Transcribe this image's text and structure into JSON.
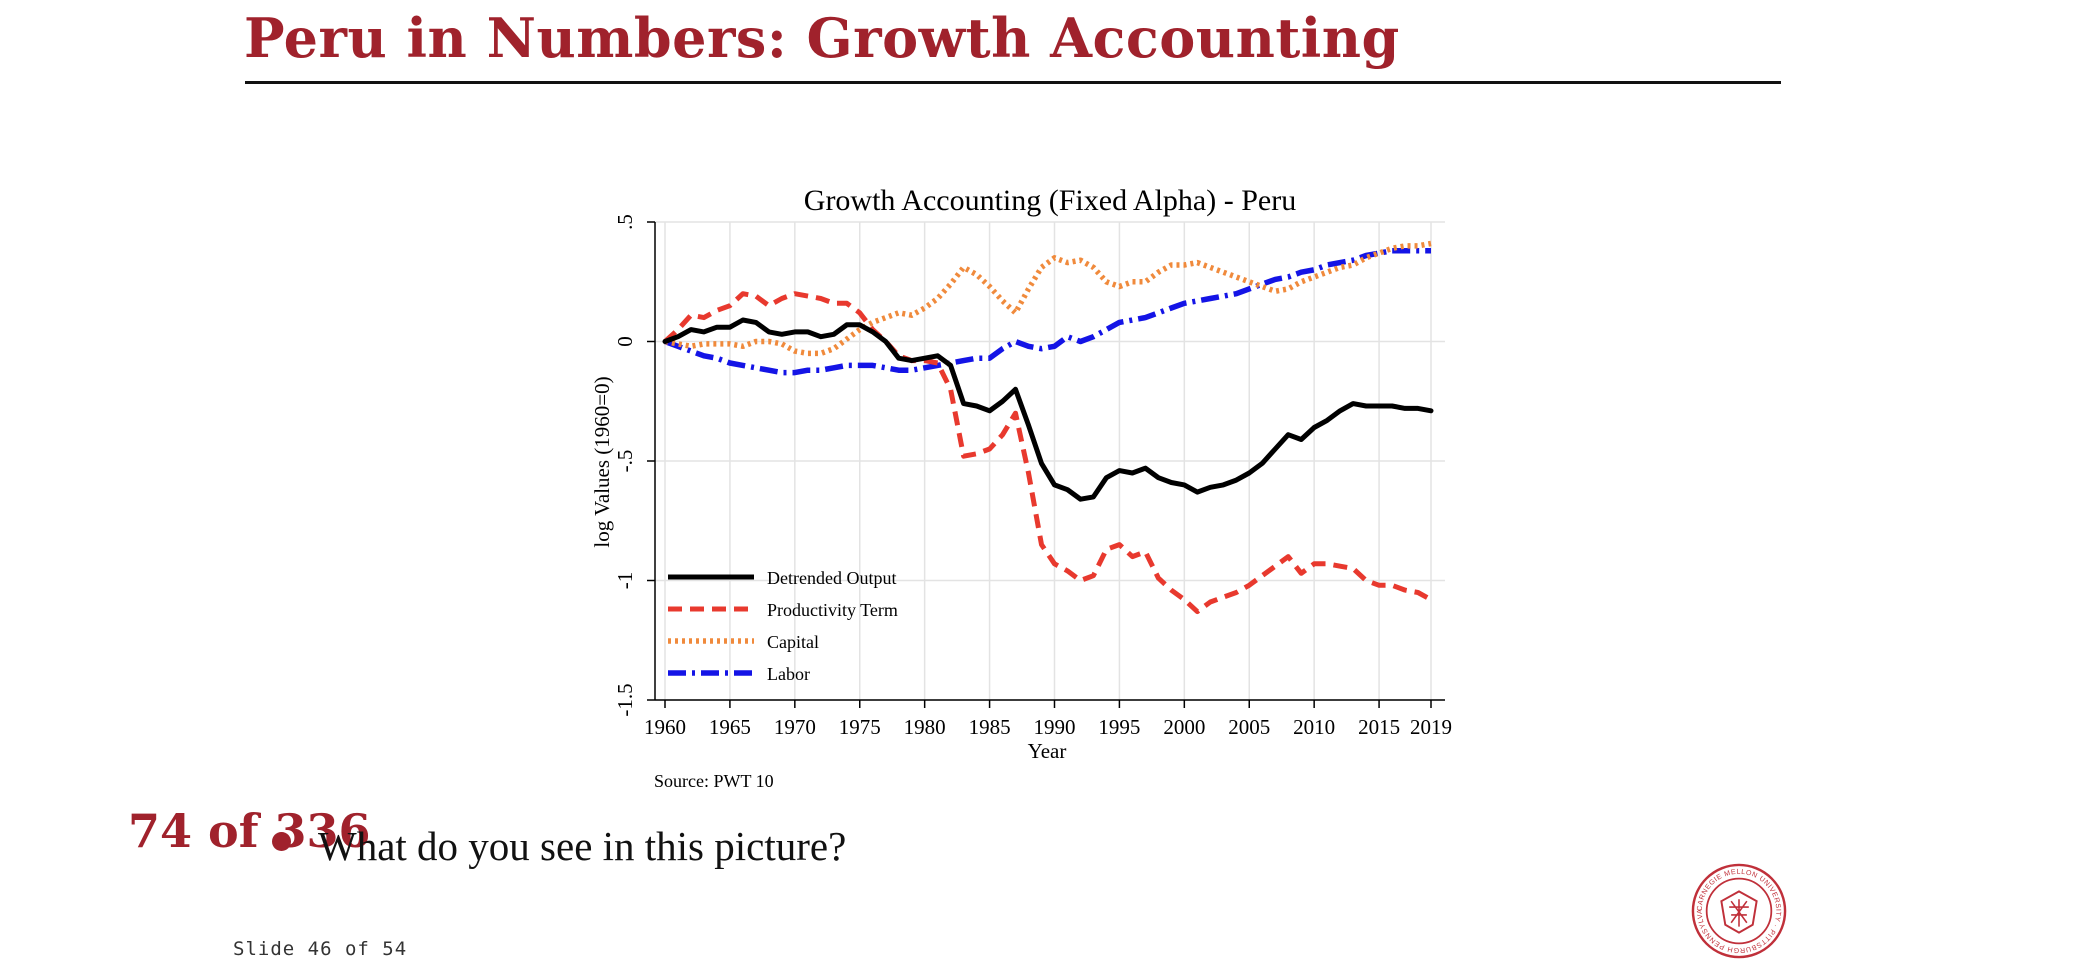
{
  "slide": {
    "title": "Peru in Numbers: Growth Accounting",
    "page_counter": "74 of 336",
    "bullet": "What do you see in this picture?",
    "slide_number": "Slide 46 of 54",
    "logo_text": "CARNEGIE MELLON UNIVERSITY · PITTSBURGH PENNSYLVANIA 1900"
  },
  "colors": {
    "accent": "#a0222c",
    "output": "#000000",
    "productivity": "#e8392e",
    "capital": "#f08a3c",
    "labor": "#1414e6"
  },
  "icons": [
    "cmu-seal-icon"
  ],
  "chart_data": {
    "type": "line",
    "title": "Growth Accounting (Fixed Alpha) - Peru",
    "xlabel": "Year",
    "ylabel": "log Values (1960=0)",
    "source": "Source: PWT 10",
    "xlim": [
      1960,
      2019
    ],
    "ylim": [
      -1.5,
      0.5
    ],
    "x_ticks": [
      "1960",
      "1965",
      "1970",
      "1975",
      "1980",
      "1985",
      "1990",
      "1995",
      "2000",
      "2005",
      "2010",
      "2015",
      "2019"
    ],
    "y_ticks": [
      "-1.5",
      "-1",
      "-.5",
      "0",
      ".5"
    ],
    "grid": true,
    "legend_position": "bottom-left",
    "x": [
      1960,
      1961,
      1962,
      1963,
      1964,
      1965,
      1966,
      1967,
      1968,
      1969,
      1970,
      1971,
      1972,
      1973,
      1974,
      1975,
      1976,
      1977,
      1978,
      1979,
      1980,
      1981,
      1982,
      1983,
      1984,
      1985,
      1986,
      1987,
      1988,
      1989,
      1990,
      1991,
      1992,
      1993,
      1994,
      1995,
      1996,
      1997,
      1998,
      1999,
      2000,
      2001,
      2002,
      2003,
      2004,
      2005,
      2006,
      2007,
      2008,
      2009,
      2010,
      2011,
      2012,
      2013,
      2014,
      2015,
      2016,
      2017,
      2018,
      2019
    ],
    "series": [
      {
        "name": "Detrended Output",
        "style": "solid",
        "values": [
          0.0,
          0.02,
          0.05,
          0.04,
          0.06,
          0.06,
          0.09,
          0.08,
          0.04,
          0.03,
          0.04,
          0.04,
          0.02,
          0.03,
          0.07,
          0.07,
          0.04,
          0.0,
          -0.07,
          -0.08,
          -0.07,
          -0.06,
          -0.1,
          -0.26,
          -0.27,
          -0.29,
          -0.25,
          -0.2,
          -0.35,
          -0.51,
          -0.6,
          -0.62,
          -0.66,
          -0.65,
          -0.57,
          -0.54,
          -0.55,
          -0.53,
          -0.57,
          -0.59,
          -0.6,
          -0.63,
          -0.61,
          -0.6,
          -0.58,
          -0.55,
          -0.51,
          -0.45,
          -0.39,
          -0.41,
          -0.36,
          -0.33,
          -0.29,
          -0.26,
          -0.27,
          -0.27,
          -0.27,
          -0.28,
          -0.28,
          -0.29
        ]
      },
      {
        "name": "Productivity Term",
        "style": "dashed",
        "values": [
          0.0,
          0.05,
          0.11,
          0.1,
          0.13,
          0.15,
          0.2,
          0.19,
          0.15,
          0.18,
          0.2,
          0.19,
          0.18,
          0.16,
          0.16,
          0.12,
          0.05,
          0.0,
          -0.06,
          -0.08,
          -0.08,
          -0.09,
          -0.2,
          -0.48,
          -0.47,
          -0.45,
          -0.39,
          -0.3,
          -0.55,
          -0.85,
          -0.93,
          -0.96,
          -1.0,
          -0.98,
          -0.87,
          -0.85,
          -0.9,
          -0.88,
          -0.99,
          -1.04,
          -1.08,
          -1.13,
          -1.09,
          -1.07,
          -1.05,
          -1.02,
          -0.98,
          -0.94,
          -0.9,
          -0.97,
          -0.93,
          -0.93,
          -0.94,
          -0.95,
          -1.0,
          -1.02,
          -1.02,
          -1.04,
          -1.05,
          -1.08
        ]
      },
      {
        "name": "Capital",
        "style": "dotted",
        "values": [
          0.0,
          -0.01,
          -0.02,
          -0.01,
          -0.01,
          -0.01,
          -0.02,
          0.0,
          0.0,
          -0.01,
          -0.04,
          -0.05,
          -0.05,
          -0.03,
          0.01,
          0.05,
          0.08,
          0.1,
          0.12,
          0.11,
          0.14,
          0.18,
          0.24,
          0.31,
          0.28,
          0.23,
          0.17,
          0.12,
          0.22,
          0.31,
          0.35,
          0.33,
          0.34,
          0.31,
          0.25,
          0.23,
          0.25,
          0.25,
          0.29,
          0.32,
          0.32,
          0.33,
          0.31,
          0.29,
          0.27,
          0.25,
          0.23,
          0.21,
          0.22,
          0.25,
          0.27,
          0.29,
          0.31,
          0.32,
          0.35,
          0.37,
          0.39,
          0.4,
          0.4,
          0.41
        ]
      },
      {
        "name": "Labor",
        "style": "dash-dot",
        "values": [
          0.0,
          -0.02,
          -0.04,
          -0.06,
          -0.07,
          -0.09,
          -0.1,
          -0.11,
          -0.12,
          -0.13,
          -0.13,
          -0.12,
          -0.12,
          -0.11,
          -0.1,
          -0.1,
          -0.1,
          -0.11,
          -0.12,
          -0.12,
          -0.11,
          -0.1,
          -0.09,
          -0.08,
          -0.07,
          -0.07,
          -0.03,
          0.0,
          -0.02,
          -0.03,
          -0.02,
          0.02,
          0.0,
          0.02,
          0.05,
          0.08,
          0.09,
          0.1,
          0.12,
          0.14,
          0.16,
          0.17,
          0.18,
          0.19,
          0.2,
          0.22,
          0.24,
          0.26,
          0.27,
          0.29,
          0.3,
          0.32,
          0.33,
          0.34,
          0.36,
          0.37,
          0.38,
          0.38,
          0.38,
          0.38
        ]
      }
    ]
  }
}
